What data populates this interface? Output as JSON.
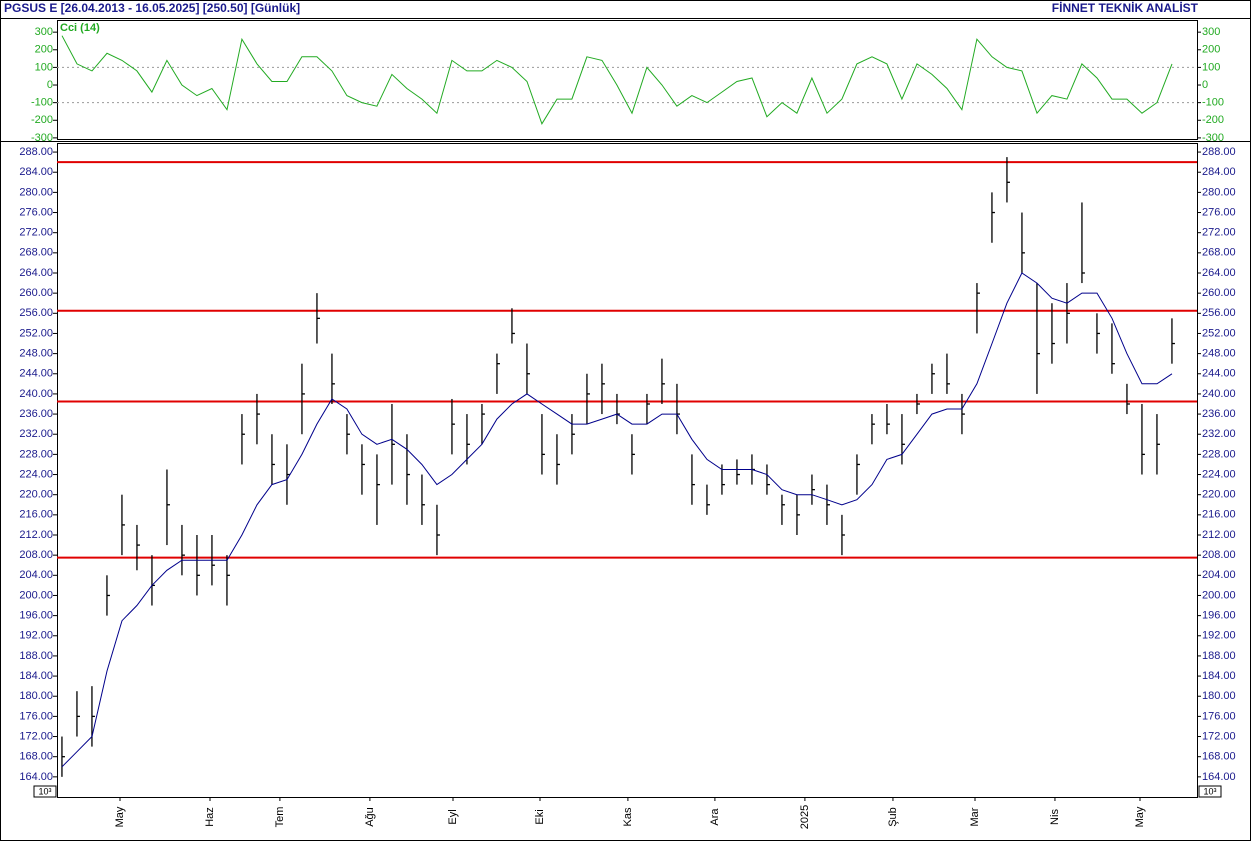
{
  "header": {
    "title": "PGSUS E  [26.04.2013 - 16.05.2025]  [250.50]  [Günlük]",
    "brand": "FİNNET TEKNİK ANALİST",
    "scale_note": "10³"
  },
  "chart_data": [
    {
      "type": "ohlc",
      "x": [
        0,
        1,
        2,
        3,
        4,
        5,
        6,
        7,
        8,
        9,
        10,
        11,
        12,
        13,
        14,
        15,
        16,
        17,
        18,
        19,
        20,
        21,
        22,
        23,
        24,
        25,
        26,
        27,
        28,
        29,
        30,
        31,
        32,
        33,
        34,
        35,
        36,
        37,
        38,
        39,
        40,
        41,
        42,
        43,
        44,
        45,
        46,
        47,
        48,
        49,
        50,
        51,
        52,
        53,
        54,
        55,
        56,
        57,
        58,
        59,
        60,
        61,
        62,
        63,
        64,
        65,
        66,
        67,
        68,
        69,
        70,
        71,
        72,
        73,
        74
      ],
      "high": [
        172,
        181,
        182,
        204,
        220,
        214,
        208,
        225,
        214,
        212,
        212,
        208,
        236,
        240,
        232,
        230,
        246,
        260,
        248,
        236,
        230,
        228,
        238,
        232,
        224,
        218,
        239,
        236,
        238,
        248,
        257,
        250,
        236,
        232,
        236,
        244,
        246,
        240,
        232,
        240,
        247,
        242,
        228,
        222,
        226,
        227,
        228,
        226,
        220,
        220,
        224,
        222,
        216,
        228,
        236,
        238,
        236,
        240,
        246,
        248,
        240,
        262,
        280,
        287,
        276,
        262,
        258,
        262,
        278,
        256,
        254,
        242,
        238,
        236,
        255
      ],
      "low": [
        164,
        172,
        170,
        196,
        208,
        205,
        198,
        210,
        204,
        200,
        202,
        198,
        226,
        230,
        222,
        218,
        232,
        250,
        238,
        228,
        220,
        214,
        222,
        218,
        214,
        208,
        228,
        226,
        230,
        240,
        250,
        240,
        224,
        222,
        228,
        234,
        236,
        234,
        224,
        234,
        238,
        232,
        218,
        216,
        220,
        222,
        222,
        220,
        214,
        212,
        218,
        214,
        208,
        220,
        230,
        232,
        226,
        236,
        240,
        240,
        232,
        252,
        270,
        278,
        264,
        240,
        246,
        250,
        262,
        248,
        244,
        236,
        224,
        224,
        246
      ],
      "close": [
        168,
        176,
        176,
        200,
        214,
        210,
        202,
        218,
        208,
        204,
        206,
        204,
        232,
        236,
        226,
        224,
        240,
        255,
        242,
        232,
        226,
        222,
        230,
        224,
        218,
        212,
        234,
        230,
        236,
        246,
        252,
        244,
        228,
        226,
        232,
        240,
        242,
        236,
        228,
        238,
        242,
        236,
        222,
        218,
        222,
        224,
        225,
        222,
        218,
        216,
        221,
        218,
        212,
        226,
        234,
        234,
        230,
        238,
        244,
        242,
        236,
        260,
        276,
        282,
        268,
        248,
        250,
        256,
        264,
        252,
        246,
        238,
        228,
        230,
        250
      ],
      "bar_color": "#000000",
      "ma": {
        "color": "#00008b",
        "values": [
          166,
          169,
          172,
          185,
          195,
          198,
          202,
          205,
          207,
          207,
          207,
          207,
          212,
          218,
          222,
          223,
          228,
          234,
          239,
          237,
          232,
          230,
          231,
          229,
          226,
          222,
          224,
          227,
          230,
          235,
          238,
          240,
          238,
          236,
          234,
          234,
          235,
          236,
          234,
          234,
          236,
          236,
          231,
          227,
          225,
          225,
          225,
          224,
          221,
          220,
          220,
          219,
          218,
          219,
          222,
          227,
          228,
          232,
          236,
          237,
          237,
          242,
          250,
          258,
          264,
          262,
          259,
          258,
          260,
          260,
          255,
          248,
          242,
          242,
          244
        ]
      },
      "reference_lines": {
        "color": "#e00000",
        "values": [
          286,
          256.5,
          238.5,
          207.5
        ]
      },
      "xlim": [
        -0.33,
        75.67
      ],
      "xticks": [
        {
          "value": 3.87,
          "label": "May"
        },
        {
          "value": 9.87,
          "label": "Haz"
        },
        {
          "value": 14.53,
          "label": "Tem"
        },
        {
          "value": 20.53,
          "label": "Ağu"
        },
        {
          "value": 26.07,
          "label": "Eyl"
        },
        {
          "value": 31.87,
          "label": "Eki"
        },
        {
          "value": 37.73,
          "label": "Kas"
        },
        {
          "value": 43.53,
          "label": "Ara"
        },
        {
          "value": 49.53,
          "label": "2025"
        },
        {
          "value": 55.4,
          "label": "Şub"
        },
        {
          "value": 60.87,
          "label": "Mar"
        },
        {
          "value": 66.2,
          "label": "Nis"
        },
        {
          "value": 71.87,
          "label": "May"
        }
      ],
      "ylim": [
        160,
        289.8
      ],
      "yticks": [
        {
          "value": 164,
          "label": "164.00"
        },
        {
          "value": 168,
          "label": "168.00"
        },
        {
          "value": 172,
          "label": "172.00"
        },
        {
          "value": 176,
          "label": "176.00"
        },
        {
          "value": 180,
          "label": "180.00"
        },
        {
          "value": 184,
          "label": "184.00"
        },
        {
          "value": 188,
          "label": "188.00"
        },
        {
          "value": 192,
          "label": "192.00"
        },
        {
          "value": 196,
          "label": "196.00"
        },
        {
          "value": 200,
          "label": "200.00"
        },
        {
          "value": 204,
          "label": "204.00"
        },
        {
          "value": 208,
          "label": "208.00"
        },
        {
          "value": 212,
          "label": "212.00"
        },
        {
          "value": 216,
          "label": "216.00"
        },
        {
          "value": 220,
          "label": "220.00"
        },
        {
          "value": 224,
          "label": "224.00"
        },
        {
          "value": 228,
          "label": "228.00"
        },
        {
          "value": 232,
          "label": "232.00"
        },
        {
          "value": 236,
          "label": "236.00"
        },
        {
          "value": 240,
          "label": "240.00"
        },
        {
          "value": 244,
          "label": "244.00"
        },
        {
          "value": 248,
          "label": "248.00"
        },
        {
          "value": 252,
          "label": "252.00"
        },
        {
          "value": 256,
          "label": "256.00"
        },
        {
          "value": 260,
          "label": "260.00"
        },
        {
          "value": 264,
          "label": "264.00"
        },
        {
          "value": 268,
          "label": "268.00"
        },
        {
          "value": 272,
          "label": "272.00"
        },
        {
          "value": 276,
          "label": "276.00"
        },
        {
          "value": 280,
          "label": "280.00"
        },
        {
          "value": 284,
          "label": "284.00"
        },
        {
          "value": 288,
          "label": "288.00"
        }
      ]
    },
    {
      "type": "line",
      "title": "Cci (14)",
      "x": [
        0,
        1,
        2,
        3,
        4,
        5,
        6,
        7,
        8,
        9,
        10,
        11,
        12,
        13,
        14,
        15,
        16,
        17,
        18,
        19,
        20,
        21,
        22,
        23,
        24,
        25,
        26,
        27,
        28,
        29,
        30,
        31,
        32,
        33,
        34,
        35,
        36,
        37,
        38,
        39,
        40,
        41,
        42,
        43,
        44,
        45,
        46,
        47,
        48,
        49,
        50,
        51,
        52,
        53,
        54,
        55,
        56,
        57,
        58,
        59,
        60,
        61,
        62,
        63,
        64,
        65,
        66,
        67,
        68,
        69,
        70,
        71,
        72,
        73,
        74
      ],
      "values": [
        280,
        120,
        80,
        180,
        140,
        80,
        -40,
        140,
        0,
        -60,
        -20,
        -140,
        260,
        120,
        20,
        20,
        160,
        160,
        80,
        -60,
        -100,
        -120,
        60,
        -20,
        -80,
        -160,
        140,
        80,
        80,
        140,
        100,
        20,
        -220,
        -80,
        -80,
        160,
        140,
        0,
        -160,
        100,
        0,
        -120,
        -60,
        -100,
        -40,
        20,
        40,
        -180,
        -100,
        -160,
        40,
        -160,
        -80,
        120,
        160,
        120,
        -80,
        120,
        60,
        -20,
        -140,
        260,
        160,
        100,
        80,
        -160,
        -60,
        -80,
        120,
        40,
        -80,
        -80,
        -160,
        -100,
        120
      ],
      "color": "#22aa22",
      "xlim": [
        -0.33,
        75.67
      ],
      "ylim": [
        -312,
        369
      ],
      "yticks": [
        300,
        200,
        100,
        0,
        -100,
        -200,
        -300
      ],
      "dotted_lines": [
        100,
        -100
      ]
    }
  ]
}
